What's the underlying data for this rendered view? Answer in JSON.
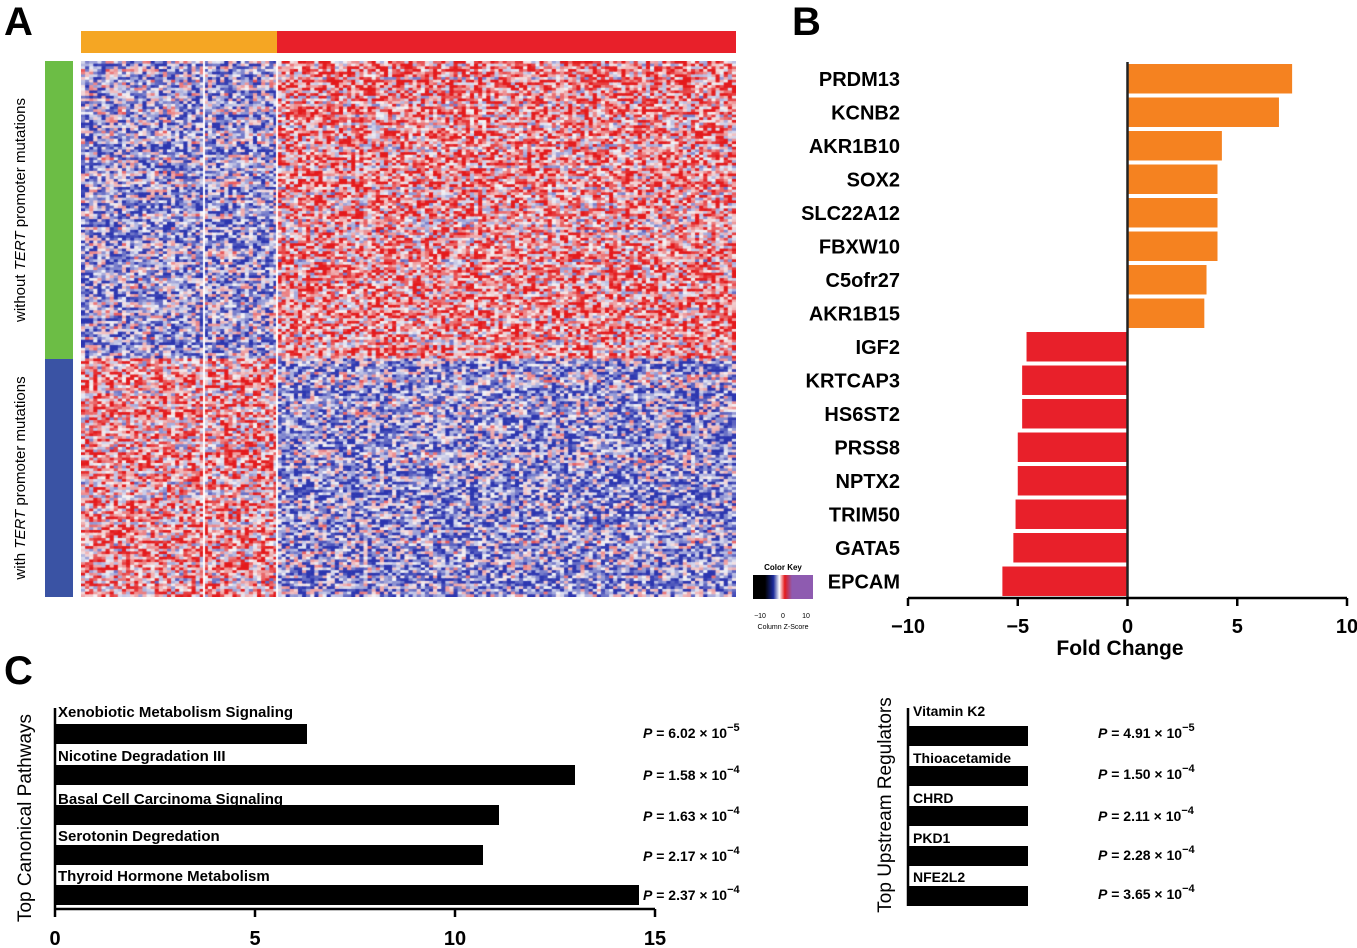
{
  "panels": {
    "a": "A",
    "b": "B",
    "c": "C"
  },
  "colors": {
    "orange": "#F58220",
    "heatmap_orange": "#F5A623",
    "red": "#E8202A",
    "green": "#6CBD45",
    "blue": "#3A53A4",
    "black": "#000000",
    "heat_blue": "#2B3BA8",
    "heat_red": "#E41A1C",
    "heat_white": "#F4F4F6"
  },
  "heatmap": {
    "row_label_top_pre": "without ",
    "row_label_top_em": "TERT",
    "row_label_top_post": " promoter mutations",
    "row_label_bottom_pre": "with ",
    "row_label_bottom_em": "TERT",
    "row_label_bottom_post": " promoter mutations",
    "color_key": {
      "title": "Color Key",
      "ticks": [
        "−10",
        "0",
        "10"
      ],
      "label": "Column Z-Score"
    }
  },
  "chart_data": [
    {
      "type": "bar",
      "orientation": "horizontal",
      "categories": [
        "PRDM13",
        "KCNB2",
        "AKR1B10",
        "SOX2",
        "SLC22A12",
        "FBXW10",
        "C5ofr27",
        "AKR1B15",
        "IGF2",
        "KRTCAP3",
        "HS6ST2",
        "PRSS8",
        "NPTX2",
        "TRIM50",
        "GATA5",
        "EPCAM"
      ],
      "values": [
        7.5,
        6.9,
        4.3,
        4.1,
        4.1,
        4.1,
        3.6,
        3.5,
        -4.6,
        -4.8,
        -4.8,
        -5.0,
        -5.0,
        -5.1,
        -5.2,
        -5.7
      ],
      "xlabel": "Fold Change",
      "ylabel": "",
      "xlim": [
        -10,
        10
      ],
      "xticks": [
        "−10",
        "−5",
        "0",
        "5",
        "10"
      ]
    },
    {
      "type": "bar",
      "orientation": "horizontal",
      "title": "",
      "ylabel": "Top Canonical Pathways",
      "categories": [
        "Xenobiotic Metabolism Signaling",
        "Nicotine Degradation III",
        "Basal Cell Carcinoma Signaling",
        "Serotonin Degredation",
        "Thyroid Hormone Metabolism"
      ],
      "values": [
        6.3,
        13.0,
        11.1,
        10.7,
        14.6
      ],
      "pvalues": [
        {
          "p": "P",
          "mant": " = 6.02 × 10",
          "exp": "−5"
        },
        {
          "p": "P",
          "mant": " = 1.58 × 10",
          "exp": "−4"
        },
        {
          "p": "P",
          "mant": " = 1.63 × 10",
          "exp": "−4"
        },
        {
          "p": "P",
          "mant": " = 2.17 × 10",
          "exp": "−4"
        },
        {
          "p": "P",
          "mant": " = 2.37 × 10",
          "exp": "−4"
        }
      ],
      "xlim": [
        0,
        15
      ],
      "xticks": [
        "0",
        "5",
        "10",
        "15"
      ]
    },
    {
      "type": "bar",
      "orientation": "horizontal",
      "ylabel": "Top Upstream Regulators",
      "categories": [
        "Vitamin K2",
        "Thioacetamide",
        "CHRD",
        "PKD1",
        "NFE2L2"
      ],
      "pvalues": [
        {
          "p": "P",
          "mant": " = 4.91 × 10",
          "exp": "−5"
        },
        {
          "p": "P",
          "mant": " = 1.50 × 10",
          "exp": "−4"
        },
        {
          "p": "P",
          "mant": " = 2.11 × 10",
          "exp": "−4"
        },
        {
          "p": "P",
          "mant": " = 2.28 × 10",
          "exp": "−4"
        },
        {
          "p": "P",
          "mant": " = 3.65 × 10",
          "exp": "−4"
        }
      ]
    }
  ]
}
